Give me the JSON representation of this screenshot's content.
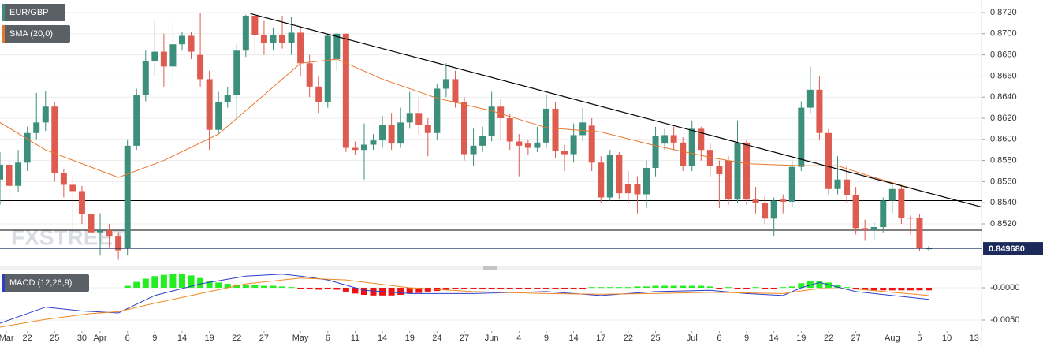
{
  "chart_data": [
    {
      "type": "candlestick",
      "symbol": "EUR/GBP",
      "up_color": "#3b8f7b",
      "down_color": "#de5b4f",
      "open": [
        0.8562,
        0.8576,
        0.8556,
        0.8578,
        0.8606,
        0.8616,
        0.8631,
        0.8568,
        0.8557,
        0.8551,
        0.8529,
        0.8512,
        0.8514,
        0.8508,
        0.8497,
        0.8594,
        0.8642,
        0.8674,
        0.8683,
        0.8669,
        0.869,
        0.8698,
        0.868,
        0.8657,
        0.8609,
        0.8635,
        0.8642,
        0.8684,
        0.8717,
        0.8699,
        0.8691,
        0.8699,
        0.8691,
        0.8701,
        0.8672,
        0.865,
        0.8635,
        0.8676,
        0.87,
        0.8592,
        0.859,
        0.8595,
        0.8599,
        0.8614,
        0.8596,
        0.8616,
        0.8625,
        0.8614,
        0.8606,
        0.8648,
        0.8657,
        0.8635,
        0.8586,
        0.8594,
        0.8603,
        0.8631,
        0.862,
        0.8598,
        0.8596,
        0.8592,
        0.8597,
        0.8629,
        0.8589,
        0.8586,
        0.8604,
        0.8613,
        0.8578,
        0.8545,
        0.8585,
        0.8558,
        0.8558,
        0.8548,
        0.8573,
        0.8596,
        0.8604,
        0.8597,
        0.8575,
        0.861,
        0.859,
        0.8575,
        0.858,
        0.8543,
        0.8597,
        0.8543,
        0.854,
        0.8525,
        0.8543,
        0.8541,
        0.8574,
        0.863,
        0.8647,
        0.8606,
        0.8553,
        0.8562,
        0.8547,
        0.8516,
        0.8514,
        0.8517,
        0.8542,
        0.8553,
        0.8526,
        0.8526,
        0.8496
      ],
      "high": [
        0.8588,
        0.8582,
        0.859,
        0.8612,
        0.8644,
        0.8646,
        0.8635,
        0.8572,
        0.8566,
        0.8556,
        0.8535,
        0.853,
        0.852,
        0.8512,
        0.86,
        0.8648,
        0.8684,
        0.8712,
        0.87,
        0.8711,
        0.8702,
        0.8702,
        0.872,
        0.8665,
        0.8645,
        0.865,
        0.869,
        0.8718,
        0.872,
        0.8712,
        0.8706,
        0.8717,
        0.8716,
        0.8706,
        0.868,
        0.866,
        0.87,
        0.8701,
        0.87,
        0.8598,
        0.8615,
        0.8605,
        0.8622,
        0.8625,
        0.863,
        0.8645,
        0.864,
        0.862,
        0.8652,
        0.8672,
        0.8665,
        0.864,
        0.861,
        0.8612,
        0.8645,
        0.8638,
        0.8624,
        0.8605,
        0.86,
        0.8612,
        0.8642,
        0.8635,
        0.8595,
        0.8615,
        0.863,
        0.862,
        0.8584,
        0.859,
        0.8588,
        0.857,
        0.8565,
        0.858,
        0.8612,
        0.861,
        0.8612,
        0.8602,
        0.8618,
        0.8612,
        0.8596,
        0.858,
        0.8584,
        0.8618,
        0.86,
        0.8555,
        0.8546,
        0.8545,
        0.8548,
        0.858,
        0.8636,
        0.8669,
        0.866,
        0.861,
        0.8584,
        0.8575,
        0.8555,
        0.8524,
        0.8522,
        0.8545,
        0.8558,
        0.8556,
        0.8528,
        0.8529,
        0.8499
      ],
      "low": [
        0.8538,
        0.8536,
        0.855,
        0.857,
        0.86,
        0.8608,
        0.856,
        0.8545,
        0.8512,
        0.852,
        0.8497,
        0.849,
        0.8498,
        0.8486,
        0.849,
        0.859,
        0.8636,
        0.866,
        0.865,
        0.865,
        0.8684,
        0.8676,
        0.865,
        0.859,
        0.8605,
        0.863,
        0.862,
        0.8678,
        0.868,
        0.868,
        0.8684,
        0.8686,
        0.868,
        0.866,
        0.864,
        0.8625,
        0.863,
        0.8665,
        0.8588,
        0.8585,
        0.8562,
        0.859,
        0.8592,
        0.859,
        0.8592,
        0.861,
        0.8605,
        0.8584,
        0.86,
        0.864,
        0.863,
        0.858,
        0.8575,
        0.8588,
        0.8598,
        0.86,
        0.859,
        0.8565,
        0.8585,
        0.8588,
        0.8592,
        0.8582,
        0.857,
        0.8578,
        0.8598,
        0.857,
        0.854,
        0.8542,
        0.8543,
        0.854,
        0.853,
        0.8535,
        0.8565,
        0.859,
        0.859,
        0.857,
        0.857,
        0.858,
        0.8565,
        0.8535,
        0.8538,
        0.854,
        0.8538,
        0.853,
        0.852,
        0.8508,
        0.853,
        0.8536,
        0.857,
        0.8625,
        0.86,
        0.8548,
        0.8548,
        0.854,
        0.851,
        0.8504,
        0.8505,
        0.8512,
        0.853,
        0.852,
        0.851,
        0.8494,
        0.8495
      ],
      "close": [
        0.8576,
        0.8556,
        0.8578,
        0.8606,
        0.8616,
        0.8631,
        0.8568,
        0.8557,
        0.8551,
        0.8529,
        0.8512,
        0.8514,
        0.8508,
        0.8495,
        0.8594,
        0.8642,
        0.8674,
        0.8683,
        0.8669,
        0.869,
        0.8698,
        0.8683,
        0.8657,
        0.8609,
        0.8635,
        0.8642,
        0.8684,
        0.8717,
        0.8699,
        0.8691,
        0.8699,
        0.8691,
        0.8701,
        0.8672,
        0.865,
        0.8635,
        0.8698,
        0.87,
        0.8592,
        0.859,
        0.8595,
        0.8599,
        0.8614,
        0.8596,
        0.8616,
        0.8625,
        0.8614,
        0.8606,
        0.8648,
        0.8657,
        0.8635,
        0.8586,
        0.8594,
        0.8603,
        0.8631,
        0.862,
        0.8598,
        0.8594,
        0.8592,
        0.8597,
        0.8629,
        0.8589,
        0.8586,
        0.8604,
        0.8616,
        0.8578,
        0.8545,
        0.8585,
        0.8549,
        0.8549,
        0.8548,
        0.8573,
        0.8603,
        0.8604,
        0.8597,
        0.8575,
        0.861,
        0.859,
        0.8575,
        0.8567,
        0.8543,
        0.8597,
        0.8543,
        0.854,
        0.8525,
        0.8542,
        0.8541,
        0.8574,
        0.863,
        0.8647,
        0.8606,
        0.8553,
        0.8562,
        0.8547,
        0.8516,
        0.8514,
        0.8517,
        0.8542,
        0.8553,
        0.8526,
        0.8525,
        0.8497,
        0.8497
      ],
      "sma": {
        "name": "SMA (20,0)",
        "color": "#e8772e",
        "x": [
          0,
          5,
          13,
          18,
          24,
          29,
          33,
          37,
          42,
          48,
          54,
          60,
          66,
          72,
          78,
          82,
          88,
          92,
          96,
          102
        ],
        "values": [
          0.8616,
          0.859,
          0.8564,
          0.858,
          0.8605,
          0.8642,
          0.8672,
          0.8676,
          0.8657,
          0.8639,
          0.8627,
          0.8611,
          0.8607,
          0.8594,
          0.8583,
          0.8577,
          0.8575,
          0.8575,
          0.8564,
          0.8549
        ]
      },
      "trendline": {
        "x": [
          27.5,
          107.8
        ],
        "values": [
          0.8719,
          0.8536
        ]
      },
      "hlines": [
        0.8542,
        0.8514
      ],
      "last_price": {
        "value": 0.84968,
        "label": "0.849680"
      },
      "watermark": "FXSTREET",
      "xlim": [
        0,
        107.8
      ],
      "ylim": [
        0.84812,
        0.87282
      ],
      "yticks": [
        {
          "value": 0.852,
          "label": "0.8520"
        },
        {
          "value": 0.854,
          "label": "0.8540"
        },
        {
          "value": 0.856,
          "label": "0.8560"
        },
        {
          "value": 0.858,
          "label": "0.8580"
        },
        {
          "value": 0.86,
          "label": "0.8600"
        },
        {
          "value": 0.862,
          "label": "0.8620"
        },
        {
          "value": 0.864,
          "label": "0.8640"
        },
        {
          "value": 0.866,
          "label": "0.8660"
        },
        {
          "value": 0.868,
          "label": "0.8680"
        },
        {
          "value": 0.87,
          "label": "0.8700"
        },
        {
          "value": 0.872,
          "label": "0.8720"
        }
      ],
      "grid": true
    },
    {
      "type": "macd",
      "name": "MACD (12,26,9)",
      "hist_up_color": "#22ee22",
      "hist_down_color": "#ee1111",
      "histogram": [
        null,
        null,
        null,
        null,
        null,
        null,
        null,
        null,
        null,
        null,
        null,
        null,
        null,
        null,
        0.0003,
        0.0009,
        0.0014,
        0.0018,
        0.002,
        0.0021,
        0.0021,
        0.0019,
        0.0015,
        0.0011,
        0.0008,
        0.0006,
        0.0005,
        0.0005,
        0.0004,
        0.0003,
        0.0003,
        0.0002,
        0.0001,
        -0.0001,
        -0.0002,
        -0.0003,
        -0.0002,
        -0.0003,
        -0.0006,
        -0.0009,
        -0.0011,
        -0.0012,
        -0.0012,
        -0.0012,
        -0.0011,
        -0.0009,
        -0.0008,
        -0.0006,
        -0.0005,
        -0.0003,
        -0.0002,
        -0.0002,
        -0.0002,
        -0.0001,
        -0.0001,
        -0.0001,
        -0.0001,
        -0.0001,
        -0.0001,
        -0.0001,
        -0.0001,
        -0.0001,
        -0.0001,
        -0.0001,
        -0.0001,
        0.0001,
        0.0001,
        0.0001,
        0.0001,
        0.0001,
        0.0002,
        0.0002,
        0.0003,
        0.0003,
        0.0003,
        0.0003,
        0.0003,
        0.0003,
        0.0002,
        -0.0001,
        0.0001,
        -0.0001,
        -0.0001,
        0.0001,
        -0.0001,
        -0.0001,
        0.0001,
        0.0002,
        0.0007,
        0.001,
        0.001,
        0.0008,
        0.0004,
        0.0001,
        -0.0002,
        -0.0003,
        -0.0004,
        -0.0004,
        -0.0004,
        -0.0004,
        -0.0004,
        -0.0004,
        -0.0004
      ],
      "macd": {
        "color": "#2d3fc9",
        "x": [
          0,
          5,
          9,
          13,
          17,
          22,
          27,
          31,
          33,
          36,
          40,
          45,
          52,
          60,
          66,
          72,
          78,
          82,
          86,
          88,
          90,
          94,
          98,
          102
        ],
        "values": [
          -0.0055,
          -0.003,
          -0.0036,
          -0.0039,
          -0.0012,
          0.0006,
          0.0018,
          0.0021,
          0.0018,
          0.0012,
          -0.0004,
          -0.0009,
          -0.0009,
          -0.0006,
          -0.0012,
          -0.0006,
          -0.0004,
          -0.0009,
          -0.0012,
          0.0,
          0.0008,
          -0.0006,
          -0.0012,
          -0.0018
        ]
      },
      "signal": {
        "color": "#f08a24",
        "x": [
          0,
          5,
          10,
          13,
          17,
          22,
          27,
          33,
          38,
          45,
          52,
          60,
          66,
          72,
          78,
          86,
          90,
          94,
          102
        ],
        "values": [
          -0.0061,
          -0.0049,
          -0.004,
          -0.0037,
          -0.0024,
          -0.0009,
          0.0006,
          0.0015,
          0.0012,
          0.0,
          -0.0006,
          -0.0009,
          -0.001,
          -0.0009,
          -0.0007,
          -0.0009,
          -0.0001,
          -0.0002,
          -0.0012
        ]
      },
      "xlim": [
        0,
        107.8
      ],
      "ylim": [
        -0.00671,
        0.00244
      ],
      "yticks": [
        {
          "value": 0,
          "label": "-0.0000"
        },
        {
          "value": -0.005,
          "label": "-0.0050"
        }
      ],
      "xticks": [
        {
          "value": 0.7,
          "label": "Mar"
        },
        {
          "value": 3,
          "label": "22"
        },
        {
          "value": 6,
          "label": "25"
        },
        {
          "value": 9,
          "label": "30"
        },
        {
          "value": 11,
          "label": "Apr"
        },
        {
          "value": 14,
          "label": "6"
        },
        {
          "value": 17,
          "label": "9"
        },
        {
          "value": 20,
          "label": "14"
        },
        {
          "value": 23,
          "label": "19"
        },
        {
          "value": 26,
          "label": "22"
        },
        {
          "value": 29,
          "label": "27"
        },
        {
          "value": 33,
          "label": "May"
        },
        {
          "value": 36,
          "label": "6"
        },
        {
          "value": 39,
          "label": "11"
        },
        {
          "value": 42,
          "label": "14"
        },
        {
          "value": 45,
          "label": "19"
        },
        {
          "value": 48,
          "label": "24"
        },
        {
          "value": 51,
          "label": "27"
        },
        {
          "value": 54,
          "label": "Jun"
        },
        {
          "value": 57,
          "label": "4"
        },
        {
          "value": 60,
          "label": "9"
        },
        {
          "value": 63,
          "label": "14"
        },
        {
          "value": 66,
          "label": "17"
        },
        {
          "value": 69,
          "label": "22"
        },
        {
          "value": 72,
          "label": "25"
        },
        {
          "value": 76,
          "label": "Jul"
        },
        {
          "value": 79,
          "label": "6"
        },
        {
          "value": 82,
          "label": "9"
        },
        {
          "value": 85,
          "label": "14"
        },
        {
          "value": 88,
          "label": "19"
        },
        {
          "value": 91,
          "label": "22"
        },
        {
          "value": 94,
          "label": "27"
        },
        {
          "value": 98,
          "label": "Aug"
        },
        {
          "value": 101,
          "label": "5"
        },
        {
          "value": 104,
          "label": "10"
        },
        {
          "value": 107,
          "label": "13"
        }
      ],
      "grid": true
    }
  ]
}
